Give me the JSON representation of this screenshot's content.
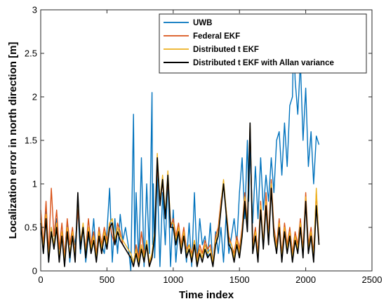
{
  "chart_data": {
    "type": "line",
    "title": "",
    "xlabel": "Time index",
    "ylabel": "Localization error in north direction [m]",
    "xlim": [
      0,
      2500
    ],
    "ylim": [
      0,
      3
    ],
    "xticks": [
      0,
      500,
      1000,
      1500,
      2000,
      2500
    ],
    "yticks": [
      0,
      0.5,
      1,
      1.5,
      2,
      2.5,
      3
    ],
    "xtick_labels": [
      "0",
      "500",
      "1000",
      "1500",
      "2000",
      "2500"
    ],
    "ytick_labels": [
      "0",
      "0.5",
      "1",
      "1.5",
      "2",
      "2.5",
      "3"
    ],
    "grid": false,
    "legend_position": "top-right",
    "series": [
      {
        "name": "UWB",
        "color": "#0072BD",
        "x": [
          0,
          20,
          40,
          60,
          80,
          100,
          120,
          140,
          160,
          180,
          200,
          220,
          240,
          260,
          280,
          300,
          320,
          340,
          360,
          380,
          400,
          420,
          440,
          460,
          480,
          500,
          520,
          540,
          560,
          580,
          600,
          620,
          640,
          660,
          680,
          700,
          710,
          720,
          740,
          760,
          780,
          800,
          820,
          840,
          845,
          850,
          860,
          880,
          900,
          920,
          940,
          960,
          980,
          1000,
          1020,
          1040,
          1060,
          1080,
          1100,
          1120,
          1140,
          1160,
          1180,
          1200,
          1220,
          1240,
          1260,
          1280,
          1300,
          1320,
          1340,
          1360,
          1380,
          1400,
          1420,
          1440,
          1460,
          1480,
          1500,
          1520,
          1540,
          1560,
          1570,
          1580,
          1600,
          1620,
          1640,
          1660,
          1680,
          1700,
          1720,
          1740,
          1760,
          1780,
          1800,
          1820,
          1840,
          1860,
          1880,
          1900,
          1910,
          1920,
          1940,
          1960,
          1980,
          2000,
          2020,
          2040,
          2060,
          2080,
          2100
        ],
        "y": [
          0.6,
          0.2,
          0.7,
          0.1,
          0.5,
          0.3,
          0.6,
          0.15,
          0.4,
          0.2,
          0.55,
          0.1,
          0.45,
          0.3,
          0.7,
          0.2,
          0.5,
          0.1,
          0.4,
          0.25,
          0.6,
          0.15,
          0.5,
          0.3,
          0.2,
          0.45,
          0.95,
          0.1,
          0.6,
          0.2,
          0.65,
          0.35,
          0.5,
          0.3,
          0.0,
          1.8,
          0.2,
          0.9,
          0.1,
          1.3,
          0.05,
          1.0,
          0.2,
          2.05,
          0.3,
          1.0,
          0.15,
          1.1,
          0.05,
          0.9,
          0.3,
          1.05,
          0.05,
          0.7,
          0.1,
          0.5,
          0.2,
          0.45,
          0.1,
          0.55,
          0.05,
          0.9,
          0.1,
          0.6,
          0.3,
          0.4,
          0.15,
          0.55,
          0.05,
          0.45,
          0.2,
          0.5,
          0.1,
          0.65,
          0.2,
          0.4,
          0.6,
          0.3,
          0.9,
          1.3,
          0.6,
          1.5,
          0.8,
          1.4,
          0.55,
          1.2,
          0.6,
          1.3,
          0.7,
          1.1,
          0.8,
          1.3,
          0.9,
          1.5,
          1.6,
          1.1,
          1.7,
          1.2,
          1.9,
          2.0,
          2.75,
          2.2,
          1.8,
          2.4,
          1.5,
          2.1,
          1.2,
          1.6,
          1.0,
          1.55,
          1.45
        ]
      },
      {
        "name": "Federal EKF",
        "color": "#D95319",
        "x": [
          0,
          20,
          40,
          60,
          80,
          100,
          120,
          140,
          160,
          180,
          200,
          220,
          240,
          260,
          280,
          300,
          320,
          340,
          360,
          380,
          400,
          420,
          440,
          460,
          480,
          500,
          520,
          540,
          560,
          580,
          600,
          620,
          640,
          660,
          680,
          700,
          720,
          740,
          760,
          780,
          800,
          820,
          840,
          860,
          880,
          900,
          920,
          940,
          960,
          980,
          1000,
          1020,
          1040,
          1060,
          1080,
          1100,
          1120,
          1140,
          1160,
          1180,
          1200,
          1220,
          1240,
          1260,
          1280,
          1300,
          1320,
          1340,
          1360,
          1380,
          1400,
          1420,
          1440,
          1460,
          1480,
          1500,
          1520,
          1540,
          1560,
          1580,
          1600,
          1620,
          1640,
          1660,
          1680,
          1700,
          1720,
          1740,
          1760,
          1780,
          1800,
          1820,
          1840,
          1860,
          1880,
          1900,
          1920,
          1940,
          1960,
          1980,
          2000,
          2020,
          2040,
          2060,
          2080,
          2100
        ],
        "y": [
          0.7,
          0.3,
          0.8,
          0.2,
          0.95,
          0.4,
          0.7,
          0.25,
          0.55,
          0.15,
          0.6,
          0.3,
          0.5,
          0.2,
          0.7,
          0.35,
          0.5,
          0.25,
          0.6,
          0.3,
          0.45,
          0.2,
          0.5,
          0.3,
          0.5,
          0.35,
          0.55,
          0.4,
          0.3,
          0.55,
          0.45,
          0.3,
          0.25,
          0.2,
          0.15,
          0.05,
          0.3,
          0.15,
          0.45,
          0.2,
          0.3,
          0.05,
          0.2,
          0.4,
          1.2,
          0.85,
          1.0,
          0.6,
          1.05,
          0.5,
          0.6,
          0.4,
          0.55,
          0.3,
          0.5,
          0.25,
          0.3,
          0.2,
          0.35,
          0.15,
          0.3,
          0.2,
          0.35,
          0.25,
          0.3,
          0.1,
          0.4,
          0.5,
          0.8,
          1.0,
          0.7,
          0.4,
          0.3,
          0.2,
          0.4,
          0.25,
          0.5,
          0.9,
          0.55,
          1.65,
          0.3,
          0.5,
          0.2,
          0.8,
          0.3,
          0.9,
          0.4,
          1.05,
          0.5,
          0.3,
          0.6,
          0.2,
          0.55,
          0.3,
          0.5,
          0.2,
          0.45,
          0.3,
          0.6,
          0.25,
          0.9,
          0.3,
          0.5,
          0.2,
          0.9,
          0.35
        ]
      },
      {
        "name": "Distributed t EKF",
        "color": "#EDB120",
        "x": [
          0,
          20,
          40,
          60,
          80,
          100,
          120,
          140,
          160,
          180,
          200,
          220,
          240,
          260,
          280,
          300,
          320,
          340,
          360,
          380,
          400,
          420,
          440,
          460,
          480,
          500,
          520,
          540,
          560,
          580,
          600,
          620,
          640,
          660,
          680,
          700,
          720,
          740,
          760,
          780,
          800,
          820,
          840,
          860,
          880,
          900,
          920,
          940,
          960,
          980,
          1000,
          1020,
          1040,
          1060,
          1080,
          1100,
          1120,
          1140,
          1160,
          1180,
          1200,
          1220,
          1240,
          1260,
          1280,
          1300,
          1320,
          1340,
          1360,
          1380,
          1400,
          1420,
          1440,
          1460,
          1480,
          1500,
          1520,
          1540,
          1560,
          1580,
          1600,
          1620,
          1640,
          1660,
          1680,
          1700,
          1720,
          1740,
          1760,
          1780,
          1800,
          1820,
          1840,
          1860,
          1880,
          1900,
          1920,
          1940,
          1960,
          1980,
          2000,
          2020,
          2040,
          2060,
          2080,
          2100
        ],
        "y": [
          0.6,
          0.25,
          0.65,
          0.15,
          0.5,
          0.3,
          0.55,
          0.15,
          0.45,
          0.1,
          0.5,
          0.2,
          0.45,
          0.15,
          0.85,
          0.3,
          0.55,
          0.2,
          0.5,
          0.25,
          0.4,
          0.15,
          0.45,
          0.25,
          0.45,
          0.3,
          0.55,
          0.6,
          0.35,
          0.5,
          0.4,
          0.35,
          0.3,
          0.25,
          0.2,
          0.1,
          0.25,
          0.1,
          0.3,
          0.15,
          0.35,
          0.1,
          0.2,
          0.45,
          1.35,
          0.8,
          1.1,
          0.65,
          1.15,
          0.55,
          0.55,
          0.35,
          0.5,
          0.25,
          0.45,
          0.2,
          0.3,
          0.15,
          0.35,
          0.1,
          0.25,
          0.15,
          0.3,
          0.2,
          0.25,
          0.1,
          0.35,
          0.45,
          0.75,
          1.05,
          0.7,
          0.35,
          0.3,
          0.15,
          0.35,
          0.2,
          0.45,
          0.85,
          0.5,
          1.7,
          0.25,
          0.45,
          0.15,
          0.75,
          0.3,
          0.8,
          0.35,
          1.0,
          0.45,
          0.25,
          0.55,
          0.15,
          0.5,
          0.25,
          0.45,
          0.15,
          0.4,
          0.25,
          0.55,
          0.2,
          0.85,
          0.25,
          0.45,
          0.15,
          0.95,
          0.3
        ]
      },
      {
        "name": "Distributed t EKF with Allan variance",
        "color": "#000000",
        "x": [
          0,
          20,
          40,
          60,
          80,
          100,
          120,
          140,
          160,
          180,
          200,
          220,
          240,
          260,
          280,
          300,
          320,
          340,
          360,
          380,
          400,
          420,
          440,
          460,
          480,
          500,
          520,
          540,
          560,
          580,
          600,
          620,
          640,
          660,
          680,
          700,
          720,
          740,
          760,
          780,
          800,
          820,
          840,
          860,
          880,
          900,
          920,
          940,
          960,
          980,
          1000,
          1020,
          1040,
          1060,
          1080,
          1100,
          1120,
          1140,
          1160,
          1180,
          1200,
          1220,
          1240,
          1260,
          1280,
          1300,
          1320,
          1340,
          1360,
          1380,
          1400,
          1420,
          1440,
          1460,
          1480,
          1500,
          1520,
          1540,
          1560,
          1580,
          1600,
          1620,
          1640,
          1660,
          1680,
          1700,
          1720,
          1740,
          1760,
          1780,
          1800,
          1820,
          1840,
          1860,
          1880,
          1900,
          1920,
          1940,
          1960,
          1980,
          2000,
          2020,
          2040,
          2060,
          2080,
          2100
        ],
        "y": [
          0.55,
          0.2,
          0.6,
          0.1,
          0.45,
          0.25,
          0.5,
          0.1,
          0.4,
          0.05,
          0.45,
          0.15,
          0.4,
          0.1,
          0.9,
          0.25,
          0.5,
          0.15,
          0.45,
          0.2,
          0.35,
          0.1,
          0.4,
          0.2,
          0.4,
          0.25,
          0.5,
          0.55,
          0.3,
          0.45,
          0.35,
          0.3,
          0.25,
          0.2,
          0.15,
          0.05,
          0.2,
          0.05,
          0.25,
          0.1,
          0.3,
          0.05,
          0.15,
          0.4,
          1.3,
          0.75,
          1.05,
          0.6,
          1.1,
          0.5,
          0.5,
          0.3,
          0.45,
          0.2,
          0.4,
          0.15,
          0.25,
          0.1,
          0.3,
          0.05,
          0.2,
          0.1,
          0.25,
          0.15,
          0.2,
          0.05,
          0.3,
          0.4,
          0.7,
          1.0,
          0.65,
          0.3,
          0.25,
          0.1,
          0.3,
          0.15,
          0.4,
          0.8,
          0.45,
          1.7,
          0.2,
          0.4,
          0.1,
          0.7,
          0.25,
          0.75,
          0.3,
          0.95,
          0.4,
          0.2,
          0.5,
          0.1,
          0.45,
          0.2,
          0.4,
          0.1,
          0.35,
          0.2,
          0.5,
          0.15,
          0.8,
          0.2,
          0.4,
          0.1,
          0.75,
          0.3
        ]
      }
    ]
  }
}
